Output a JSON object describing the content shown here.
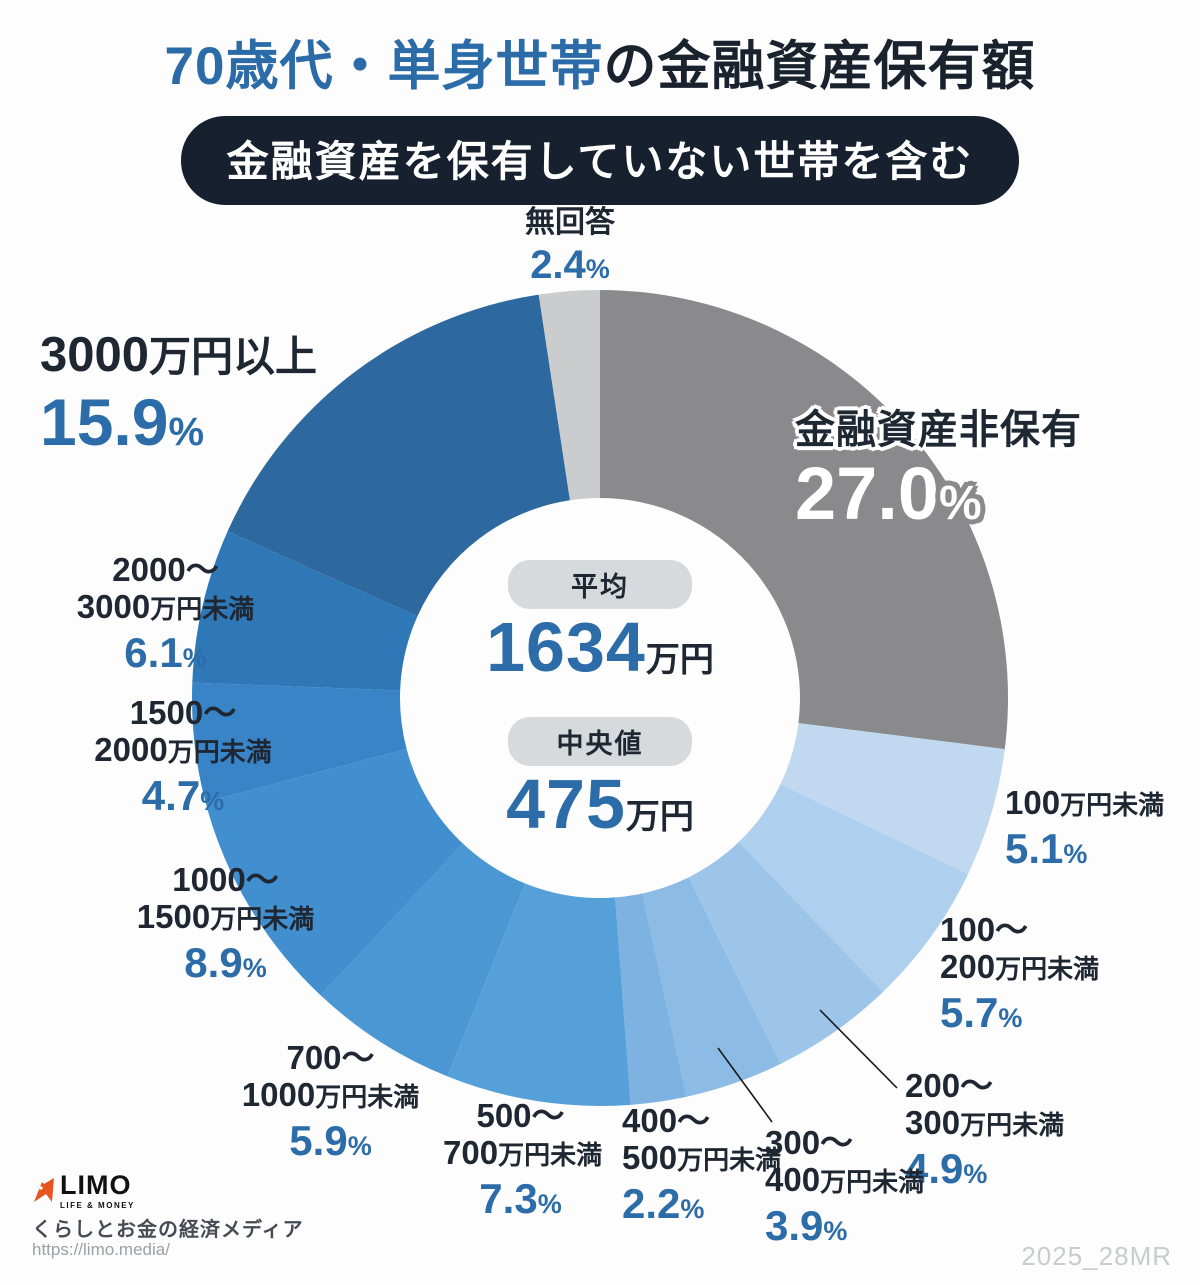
{
  "title": {
    "highlight": "70歳代・単身世帯",
    "rest": "の金融資産保有額"
  },
  "subtitle_badge": "金融資産を保有していない世帯を含む",
  "chart_data": {
    "type": "pie",
    "subtype": "donut",
    "title": "70歳代・単身世帯の金融資産保有額（金融資産を保有していない世帯を含む）",
    "units": "%",
    "start_angle_deg": -90,
    "direction": "clockwise",
    "segments": [
      {
        "label": "金融資産非保有",
        "value": 27.0,
        "color": "#8a8a8c"
      },
      {
        "label": "100万円未満",
        "value": 5.1,
        "color": "#c0d9f1"
      },
      {
        "label": "100〜200万円未満",
        "value": 5.7,
        "color": "#aecfed"
      },
      {
        "label": "200〜300万円未満",
        "value": 4.9,
        "color": "#9dc5e9"
      },
      {
        "label": "300〜400万円未満",
        "value": 3.9,
        "color": "#8cbce6"
      },
      {
        "label": "400〜500万円未満",
        "value": 2.2,
        "color": "#7db2e1"
      },
      {
        "label": "500〜700万円未満",
        "value": 7.3,
        "color": "#55a0d9"
      },
      {
        "label": "700〜1000万円未満",
        "value": 5.9,
        "color": "#4a97d4"
      },
      {
        "label": "1000〜1500万円未満",
        "value": 8.9,
        "color": "#418fcf"
      },
      {
        "label": "1500〜2000万円未満",
        "value": 4.7,
        "color": "#3884c6"
      },
      {
        "label": "2000〜3000万円未満",
        "value": 6.1,
        "color": "#2f78b7"
      },
      {
        "label": "3000万円以上",
        "value": 15.9,
        "color": "#2d689f"
      },
      {
        "label": "無回答",
        "value": 2.4,
        "color": "#cbcccd"
      }
    ],
    "center_stats": {
      "mean_label": "平均",
      "mean_value": "1634",
      "mean_unit": "万円",
      "median_label": "中央値",
      "median_value": "475",
      "median_unit": "万円"
    }
  },
  "callouts": [
    {
      "name": "金融資産非保有",
      "pct": "27.0",
      "pct_sym": "%"
    },
    {
      "line2_num": "100",
      "line2_text": "万円未満",
      "pct": "5.1",
      "pct_sym": "%"
    },
    {
      "line1": "100〜",
      "line2_num": "200",
      "line2_text": "万円未満",
      "pct": "5.7",
      "pct_sym": "%"
    },
    {
      "line1": "200〜",
      "line2_num": "300",
      "line2_text": "万円未満",
      "pct": "4.9",
      "pct_sym": "%"
    },
    {
      "line1": "300〜",
      "line2_num": "400",
      "line2_text": "万円未満",
      "pct": "3.9",
      "pct_sym": "%"
    },
    {
      "line1": "400〜",
      "line2_num": "500",
      "line2_text": "万円未満",
      "pct": "2.2",
      "pct_sym": "%"
    },
    {
      "line1": "500〜",
      "line2_num": "700",
      "line2_text": "万円未満",
      "pct": "7.3",
      "pct_sym": "%"
    },
    {
      "line1": "700〜",
      "line2_num": "1000",
      "line2_text": "万円未満",
      "pct": "5.9",
      "pct_sym": "%"
    },
    {
      "line1": "1000〜",
      "line2_num": "1500",
      "line2_text": "万円未満",
      "pct": "8.9",
      "pct_sym": "%"
    },
    {
      "line1": "1500〜",
      "line2_num": "2000",
      "line2_text": "万円未満",
      "pct": "4.7",
      "pct_sym": "%"
    },
    {
      "line1": "2000〜",
      "line2_num": "3000",
      "line2_text": "万円未満",
      "pct": "6.1",
      "pct_sym": "%"
    },
    {
      "line2_num": "3000",
      "line2_text": "万円以上",
      "pct": "15.9",
      "pct_sym": "%"
    },
    {
      "name": "無回答",
      "pct": "2.4",
      "pct_sym": "%"
    }
  ],
  "footer": {
    "logo_name": "LIMO",
    "logo_sub": "LIFE & MONEY",
    "tagline": "くらしとお金の経済メディア",
    "url": "https://limo.media/",
    "ref_code": "2025_28MR"
  }
}
